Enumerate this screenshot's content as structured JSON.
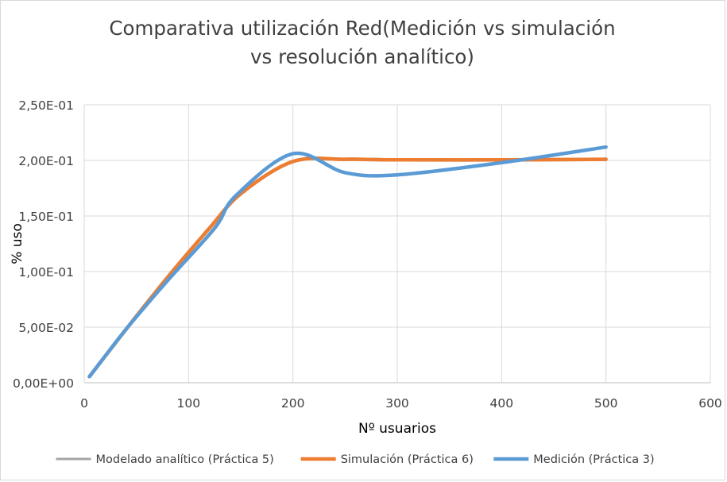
{
  "chart_data": {
    "type": "line",
    "title_lines": [
      "Comparativa utilización Red(Medición vs simulación",
      "vs resolución analítico)"
    ],
    "xlabel": "Nº usuarios",
    "ylabel": "% uso",
    "xlim": [
      0,
      600
    ],
    "ylim": [
      0,
      0.25
    ],
    "x_ticks": [
      0,
      100,
      200,
      300,
      400,
      500,
      600
    ],
    "x_tick_labels": [
      "0",
      "100",
      "200",
      "300",
      "400",
      "500",
      "600"
    ],
    "y_ticks": [
      0,
      0.05,
      0.1,
      0.15,
      0.2,
      0.25
    ],
    "y_tick_labels": [
      "0,00E+00",
      "5,00E-02",
      "1,00E-01",
      "1,50E-01",
      "2,00E-01",
      "2,50E-01"
    ],
    "grid": true,
    "legend_position": "bottom",
    "series": [
      {
        "name": "Modelado analítico (Práctica 5)",
        "color": "#a5a5a5",
        "x": [
          5,
          40,
          80,
          120,
          150,
          200,
          250,
          300,
          400,
          500
        ],
        "y": [
          0.0055,
          0.048,
          0.095,
          0.139,
          0.17,
          0.199,
          0.201,
          0.2005,
          0.2005,
          0.201
        ]
      },
      {
        "name": "Simulación (Práctica 6)",
        "color": "#ed7d31",
        "x": [
          5,
          40,
          80,
          120,
          150,
          200,
          250,
          300,
          400,
          500
        ],
        "y": [
          0.0055,
          0.048,
          0.095,
          0.139,
          0.17,
          0.199,
          0.201,
          0.2005,
          0.2005,
          0.201
        ]
      },
      {
        "name": "Medición (Práctica 3)",
        "color": "#5b9bd5",
        "x": [
          5,
          40,
          80,
          125,
          145,
          200,
          250,
          300,
          400,
          500
        ],
        "y": [
          0.0055,
          0.048,
          0.092,
          0.139,
          0.168,
          0.206,
          0.189,
          0.187,
          0.198,
          0.212
        ]
      }
    ]
  }
}
